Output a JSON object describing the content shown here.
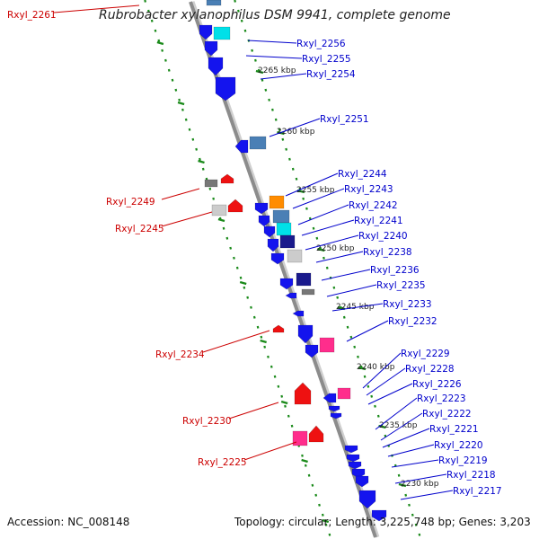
{
  "title": "Rubrobacter xylanophilus DSM 9941, complete genome",
  "footer": {
    "accession_label": "Accession:",
    "accession": "NC_008148",
    "topology_label": "Topology:",
    "topology": "circular",
    "length_label": "Length:",
    "length": "3,225,748 bp",
    "genes_label": "Genes:",
    "genes": "3,203"
  },
  "colors": {
    "label_right": "#0000cc",
    "label_left": "#cc0000",
    "backbone": "#8c8c8c",
    "ticks": "#1a8a1a",
    "gene_blue": "#1414ee",
    "gene_darkblue": "#1a1a8c",
    "gene_cyan": "#00e0e8",
    "gene_steel": "#4a7fb5",
    "gene_orange": "#ff8c00",
    "gene_pink": "#ff2d8c",
    "gene_red": "#ee1111",
    "gene_gray": "#777777",
    "gene_lightgray": "#cccccc"
  },
  "scale_labels": [
    "2265 kbp",
    "2260 kbp",
    "2255 kbp",
    "2250 kbp",
    "2245 kbp",
    "2240 kbp",
    "2235 kbp",
    "2230 kbp"
  ],
  "right_labels": [
    "Rxyl_2256",
    "Rxyl_2255",
    "Rxyl_2254",
    "Rxyl_2251",
    "Rxyl_2244",
    "Rxyl_2243",
    "Rxyl_2242",
    "Rxyl_2241",
    "Rxyl_2240",
    "Rxyl_2238",
    "Rxyl_2236",
    "Rxyl_2235",
    "Rxyl_2233",
    "Rxyl_2232",
    "Rxyl_2229",
    "Rxyl_2228",
    "Rxyl_2226",
    "Rxyl_2223",
    "Rxyl_2222",
    "Rxyl_2221",
    "Rxyl_2220",
    "Rxyl_2219",
    "Rxyl_2218",
    "Rxyl_2217"
  ],
  "left_labels": [
    "Rxyl_2261",
    "Rxyl_2249",
    "Rxyl_2245",
    "Rxyl_2234",
    "Rxyl_2230",
    "Rxyl_2225"
  ]
}
